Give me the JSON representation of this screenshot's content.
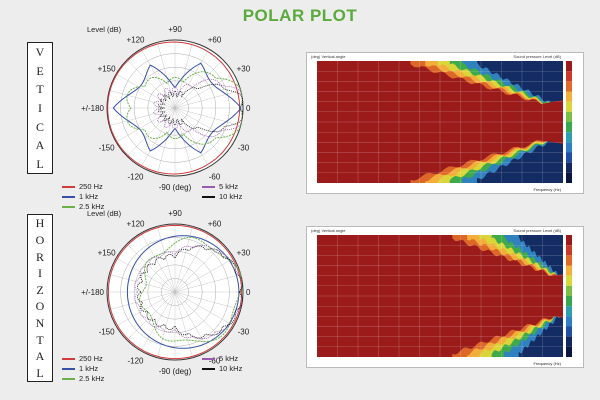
{
  "title": "POLAR PLOT",
  "colors": {
    "title": "#5aaa3c",
    "hz250": "#d13b3b",
    "khz1": "#3550a8",
    "khz2_5": "#6bb04b",
    "khz5": "#9a5ab2",
    "khz10": "#111111"
  },
  "vertical": {
    "side_label": [
      "V",
      "E",
      "T",
      "I",
      "C",
      "A",
      "L"
    ],
    "polar": {
      "level_label": "Level  (dB)",
      "angle_labels": {
        "top": "+90",
        "p60": "+60",
        "p30": "+30",
        "zero": "0",
        "m30": "-30",
        "m60": "-60",
        "bottom": "-90 (deg)",
        "m120": "-120",
        "m150": "-150",
        "pm180": "+/-180",
        "p150": "+150",
        "p120": "+120"
      }
    },
    "legend": [
      {
        "label": "250 Hz",
        "color": "#d13b3b"
      },
      {
        "label": "1 kHz",
        "color": "#3550a8"
      },
      {
        "label": "2.5 kHz",
        "color": "#6bb04b"
      },
      {
        "label": "5 kHz",
        "color": "#9a5ab2"
      },
      {
        "label": "10 kHz",
        "color": "#111111"
      }
    ]
  },
  "horizontal": {
    "side_label": [
      "H",
      "O",
      "R",
      "I",
      "Z",
      "O",
      "N",
      "T",
      "A",
      "L"
    ],
    "polar": {
      "level_label": "Level  (dB)",
      "angle_labels": {
        "top": "+90",
        "p60": "+60",
        "p30": "+30",
        "zero": "0",
        "m30": "-30",
        "m60": "-60",
        "bottom": "-90 (deg)",
        "m120": "-120",
        "m150": "-150",
        "pm180": "+/-180",
        "p150": "+150",
        "p120": "+120"
      }
    },
    "legend": [
      {
        "label": "250 Hz",
        "color": "#d13b3b"
      },
      {
        "label": "1 kHz",
        "color": "#3550a8"
      },
      {
        "label": "2.5 kHz",
        "color": "#6bb04b"
      },
      {
        "label": "5 kHz",
        "color": "#9a5ab2"
      },
      {
        "label": "10 kHz",
        "color": "#111111"
      }
    ]
  },
  "heatmaps": {
    "vertical": {
      "header_left": "(deg)  Vertical angle",
      "header_right": "Sound pressure  Level (dB)",
      "footer": "Frequency (Hz)"
    },
    "horizontal": {
      "header_left": "(deg)  Vertical angle",
      "header_right": "Sound pressure  Level (dB)",
      "footer": "Frequency (Hz)"
    }
  },
  "chart_data": [
    {
      "type": "line",
      "title": "POLAR PLOT",
      "subtitle": "VETICAL",
      "series": [
        {
          "name": "250 Hz",
          "values": []
        },
        {
          "name": "1 kHz",
          "values": []
        },
        {
          "name": "2.5 kHz",
          "values": []
        },
        {
          "name": "5 kHz",
          "values": []
        },
        {
          "name": "10 kHz",
          "values": []
        }
      ]
    },
    {
      "type": "line",
      "title": "POLAR PLOT",
      "subtitle": "HORIZONTAL",
      "series": [
        {
          "name": "250 Hz",
          "values": []
        },
        {
          "name": "1 kHz",
          "values": []
        },
        {
          "name": "2.5 kHz",
          "values": []
        },
        {
          "name": "5 kHz",
          "values": []
        },
        {
          "name": "10 kHz",
          "values": []
        }
      ]
    },
    {
      "type": "heatmap",
      "xlabel": "Frequency (Hz)"
    },
    {
      "type": "heatmap",
      "xlabel": "Frequency (Hz)"
    }
  ]
}
